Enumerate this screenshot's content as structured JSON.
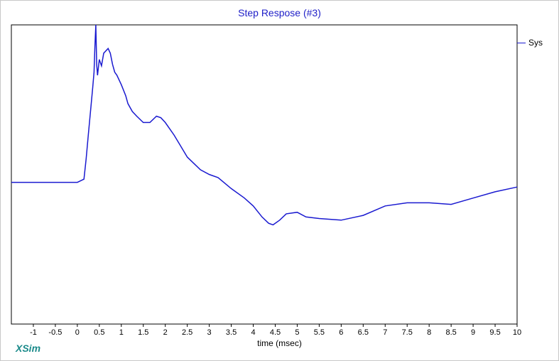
{
  "chart_data": {
    "type": "line",
    "title": "Step Respose (#3)",
    "xlabel": "time (msec)",
    "ylabel": "",
    "xlim": [
      -1.5,
      10
    ],
    "ylim": [
      -0.9,
      1.0
    ],
    "grid": false,
    "legend_position": "top-right",
    "x_ticks": [
      -1,
      -0.5,
      0,
      0.5,
      1,
      1.5,
      2,
      2.5,
      3,
      3.5,
      4,
      4.5,
      5,
      5.5,
      6,
      6.5,
      7,
      7.5,
      8,
      8.5,
      9,
      9.5,
      10
    ],
    "x_tick_labels": [
      "-1",
      "-0.5",
      "0",
      "0.5",
      "1",
      "1.5",
      "2",
      "2.5",
      "3",
      "3.5",
      "4",
      "4.5",
      "5",
      "5.5",
      "6",
      "6.5",
      "7",
      "7.5",
      "8",
      "8.5",
      "9",
      "9.5",
      "10"
    ],
    "series": [
      {
        "name": "Sys",
        "color": "#1a1ad0",
        "x": [
          -1.5,
          0.0,
          0.15,
          0.2,
          0.25,
          0.3,
          0.35,
          0.38,
          0.4,
          0.42,
          0.44,
          0.46,
          0.5,
          0.55,
          0.6,
          0.7,
          0.75,
          0.8,
          0.85,
          0.9,
          1.0,
          1.1,
          1.15,
          1.25,
          1.35,
          1.5,
          1.65,
          1.8,
          1.9,
          2.0,
          2.2,
          2.5,
          2.8,
          3.0,
          3.2,
          3.5,
          3.8,
          4.0,
          4.2,
          4.35,
          4.45,
          4.6,
          4.75,
          5.0,
          5.2,
          5.5,
          6.0,
          6.5,
          7.0,
          7.5,
          8.0,
          8.5,
          9.0,
          9.5,
          10.0
        ],
        "y": [
          0.0,
          0.0,
          0.02,
          0.15,
          0.3,
          0.45,
          0.6,
          0.7,
          0.86,
          1.0,
          0.75,
          0.68,
          0.78,
          0.74,
          0.82,
          0.85,
          0.82,
          0.75,
          0.7,
          0.68,
          0.62,
          0.55,
          0.5,
          0.45,
          0.42,
          0.38,
          0.38,
          0.42,
          0.41,
          0.38,
          0.3,
          0.16,
          0.08,
          0.05,
          0.03,
          -0.04,
          -0.1,
          -0.15,
          -0.22,
          -0.26,
          -0.27,
          -0.24,
          -0.2,
          -0.19,
          -0.22,
          -0.23,
          -0.24,
          -0.21,
          -0.15,
          -0.13,
          -0.13,
          -0.14,
          -0.1,
          -0.06,
          -0.03
        ]
      }
    ]
  }
}
